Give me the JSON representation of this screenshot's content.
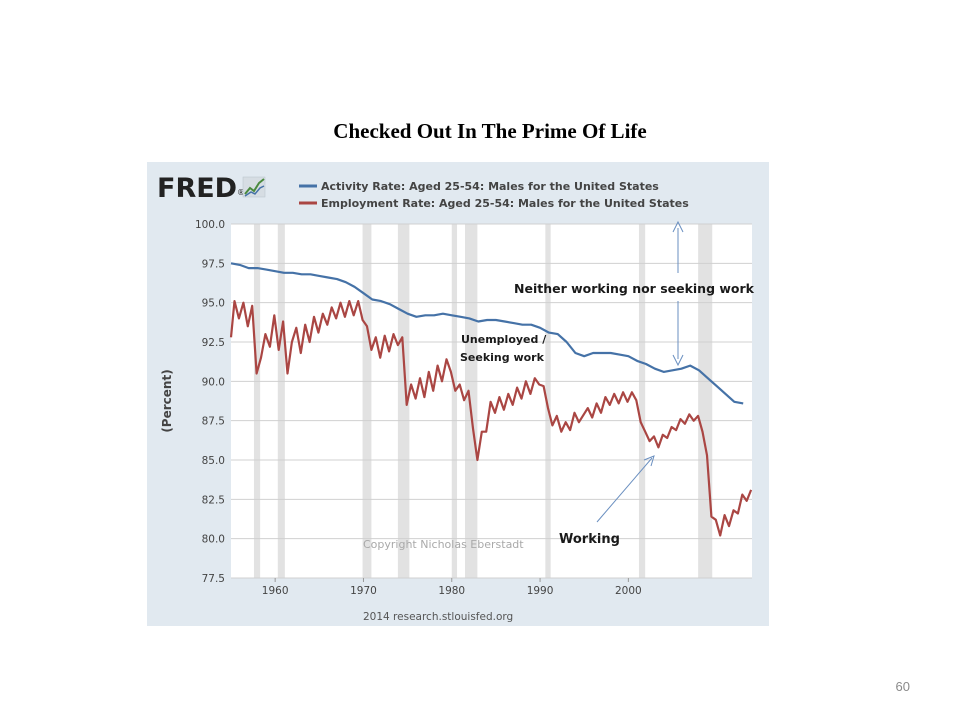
{
  "slide": {
    "title": "Checked Out In The Prime Of Life",
    "page_number": "60"
  },
  "fred": {
    "logo_text": "FRED",
    "logo_mark": "®",
    "source": "2014 research.stlouisfed.org",
    "copyright": "Copyright Nicholas Eberstadt"
  },
  "annotations": {
    "gap": "Neither working nor seeking work",
    "unemployed_line1": "Unemployed /",
    "unemployed_line2": "Seeking work",
    "working": "Working"
  },
  "chart_data": {
    "type": "line",
    "ylabel": "(Percent)",
    "xlabel": "",
    "ylim": [
      77.5,
      100.0
    ],
    "xlim": [
      1955,
      2014
    ],
    "y_ticks": [
      77.5,
      80.0,
      82.5,
      85.0,
      87.5,
      90.0,
      92.5,
      95.0,
      97.5,
      100.0
    ],
    "y_tick_labels": [
      "77.5",
      "80.0",
      "82.5",
      "85.0",
      "87.5",
      "90.0",
      "92.5",
      "95.0",
      "97.5",
      "100.0"
    ],
    "x_ticks": [
      1960,
      1970,
      1980,
      1990,
      2000
    ],
    "x_tick_labels": [
      "1960",
      "1970",
      "1980",
      "1990",
      "2000"
    ],
    "legend_position": "top",
    "grid": true,
    "recessions": [
      [
        1957.6,
        1958.3
      ],
      [
        1960.3,
        1961.1
      ],
      [
        1969.9,
        1970.9
      ],
      [
        1973.9,
        1975.2
      ],
      [
        1980.0,
        1980.6
      ],
      [
        1981.5,
        1982.9
      ],
      [
        1990.6,
        1991.2
      ],
      [
        2001.2,
        2001.9
      ],
      [
        2007.9,
        2009.5
      ]
    ],
    "series": [
      {
        "name": "Activity Rate: Aged 25-54: Males for the United States",
        "color": "#4572a7",
        "points": [
          [
            1955,
            97.5
          ],
          [
            1956,
            97.4
          ],
          [
            1957,
            97.2
          ],
          [
            1958,
            97.2
          ],
          [
            1959,
            97.1
          ],
          [
            1960,
            97.0
          ],
          [
            1961,
            96.9
          ],
          [
            1962,
            96.9
          ],
          [
            1963,
            96.8
          ],
          [
            1964,
            96.8
          ],
          [
            1965,
            96.7
          ],
          [
            1966,
            96.6
          ],
          [
            1967,
            96.5
          ],
          [
            1968,
            96.3
          ],
          [
            1969,
            96.0
          ],
          [
            1970,
            95.6
          ],
          [
            1971,
            95.2
          ],
          [
            1972,
            95.1
          ],
          [
            1973,
            94.9
          ],
          [
            1974,
            94.6
          ],
          [
            1975,
            94.3
          ],
          [
            1976,
            94.1
          ],
          [
            1977,
            94.2
          ],
          [
            1978,
            94.2
          ],
          [
            1979,
            94.3
          ],
          [
            1980,
            94.2
          ],
          [
            1981,
            94.1
          ],
          [
            1982,
            94.0
          ],
          [
            1983,
            93.8
          ],
          [
            1984,
            93.9
          ],
          [
            1985,
            93.9
          ],
          [
            1986,
            93.8
          ],
          [
            1987,
            93.7
          ],
          [
            1988,
            93.6
          ],
          [
            1989,
            93.6
          ],
          [
            1990,
            93.4
          ],
          [
            1991,
            93.1
          ],
          [
            1992,
            93.0
          ],
          [
            1993,
            92.5
          ],
          [
            1994,
            91.8
          ],
          [
            1995,
            91.6
          ],
          [
            1996,
            91.8
          ],
          [
            1997,
            91.8
          ],
          [
            1998,
            91.8
          ],
          [
            1999,
            91.7
          ],
          [
            2000,
            91.6
          ],
          [
            2001,
            91.3
          ],
          [
            2002,
            91.1
          ],
          [
            2003,
            90.8
          ],
          [
            2004,
            90.6
          ],
          [
            2005,
            90.7
          ],
          [
            2006,
            90.8
          ],
          [
            2007,
            91.0
          ],
          [
            2008,
            90.7
          ],
          [
            2009,
            90.2
          ],
          [
            2010,
            89.7
          ],
          [
            2011,
            89.2
          ],
          [
            2012,
            88.7
          ],
          [
            2013,
            88.6
          ]
        ]
      },
      {
        "name": "Employment Rate: Aged 25-54: Males for the United States",
        "color": "#aa4643",
        "points": [
          [
            1955,
            92.8
          ],
          [
            1955.4,
            95.1
          ],
          [
            1955.9,
            94.0
          ],
          [
            1956.4,
            95.0
          ],
          [
            1956.9,
            93.5
          ],
          [
            1957.4,
            94.8
          ],
          [
            1957.9,
            90.5
          ],
          [
            1958.4,
            91.5
          ],
          [
            1958.9,
            93.0
          ],
          [
            1959.4,
            92.2
          ],
          [
            1959.9,
            94.2
          ],
          [
            1960.4,
            92.0
          ],
          [
            1960.9,
            93.8
          ],
          [
            1961.4,
            90.5
          ],
          [
            1961.9,
            92.5
          ],
          [
            1962.4,
            93.4
          ],
          [
            1962.9,
            91.8
          ],
          [
            1963.4,
            93.6
          ],
          [
            1963.9,
            92.5
          ],
          [
            1964.4,
            94.1
          ],
          [
            1964.9,
            93.1
          ],
          [
            1965.4,
            94.3
          ],
          [
            1965.9,
            93.6
          ],
          [
            1966.4,
            94.7
          ],
          [
            1966.9,
            94.0
          ],
          [
            1967.4,
            95.0
          ],
          [
            1967.9,
            94.1
          ],
          [
            1968.4,
            95.1
          ],
          [
            1968.9,
            94.2
          ],
          [
            1969.4,
            95.1
          ],
          [
            1969.9,
            93.9
          ],
          [
            1970.4,
            93.5
          ],
          [
            1970.9,
            92.0
          ],
          [
            1971.4,
            92.8
          ],
          [
            1971.9,
            91.5
          ],
          [
            1972.4,
            92.9
          ],
          [
            1972.9,
            91.9
          ],
          [
            1973.4,
            93.0
          ],
          [
            1973.9,
            92.3
          ],
          [
            1974.4,
            92.8
          ],
          [
            1974.9,
            88.5
          ],
          [
            1975.4,
            89.8
          ],
          [
            1975.9,
            88.9
          ],
          [
            1976.4,
            90.2
          ],
          [
            1976.9,
            89.0
          ],
          [
            1977.4,
            90.6
          ],
          [
            1977.9,
            89.4
          ],
          [
            1978.4,
            91.0
          ],
          [
            1978.9,
            90.0
          ],
          [
            1979.4,
            91.4
          ],
          [
            1979.9,
            90.6
          ],
          [
            1980.4,
            89.4
          ],
          [
            1980.9,
            89.8
          ],
          [
            1981.4,
            88.8
          ],
          [
            1981.9,
            89.4
          ],
          [
            1982.4,
            87.0
          ],
          [
            1982.9,
            85.0
          ],
          [
            1983.4,
            86.8
          ],
          [
            1983.9,
            86.8
          ],
          [
            1984.4,
            88.7
          ],
          [
            1984.9,
            88.0
          ],
          [
            1985.4,
            89.0
          ],
          [
            1985.9,
            88.2
          ],
          [
            1986.4,
            89.2
          ],
          [
            1986.9,
            88.5
          ],
          [
            1987.4,
            89.6
          ],
          [
            1987.9,
            88.9
          ],
          [
            1988.4,
            90.0
          ],
          [
            1988.9,
            89.2
          ],
          [
            1989.4,
            90.2
          ],
          [
            1989.9,
            89.8
          ],
          [
            1990.4,
            89.7
          ],
          [
            1990.9,
            88.3
          ],
          [
            1991.4,
            87.2
          ],
          [
            1991.9,
            87.8
          ],
          [
            1992.4,
            86.8
          ],
          [
            1992.9,
            87.4
          ],
          [
            1993.4,
            86.9
          ],
          [
            1993.9,
            88.0
          ],
          [
            1994.4,
            87.4
          ],
          [
            1995.4,
            88.3
          ],
          [
            1995.9,
            87.7
          ],
          [
            1996.4,
            88.6
          ],
          [
            1996.9,
            88.0
          ],
          [
            1997.4,
            89.0
          ],
          [
            1997.9,
            88.5
          ],
          [
            1998.4,
            89.2
          ],
          [
            1998.9,
            88.6
          ],
          [
            1999.4,
            89.3
          ],
          [
            1999.9,
            88.7
          ],
          [
            2000.4,
            89.3
          ],
          [
            2000.9,
            88.8
          ],
          [
            2001.4,
            87.4
          ],
          [
            2001.9,
            86.8
          ],
          [
            2002.4,
            86.2
          ],
          [
            2002.9,
            86.5
          ],
          [
            2003.4,
            85.8
          ],
          [
            2003.9,
            86.6
          ],
          [
            2004.4,
            86.4
          ],
          [
            2004.9,
            87.1
          ],
          [
            2005.4,
            86.9
          ],
          [
            2005.9,
            87.6
          ],
          [
            2006.4,
            87.3
          ],
          [
            2006.9,
            87.9
          ],
          [
            2007.4,
            87.5
          ],
          [
            2007.9,
            87.8
          ],
          [
            2008.4,
            86.8
          ],
          [
            2008.9,
            85.3
          ],
          [
            2009.4,
            81.4
          ],
          [
            2009.9,
            81.2
          ],
          [
            2010.4,
            80.2
          ],
          [
            2010.9,
            81.5
          ],
          [
            2011.4,
            80.8
          ],
          [
            2011.9,
            81.8
          ],
          [
            2012.4,
            81.6
          ],
          [
            2012.9,
            82.8
          ],
          [
            2013.4,
            82.4
          ],
          [
            2013.9,
            83.1
          ]
        ]
      }
    ]
  }
}
